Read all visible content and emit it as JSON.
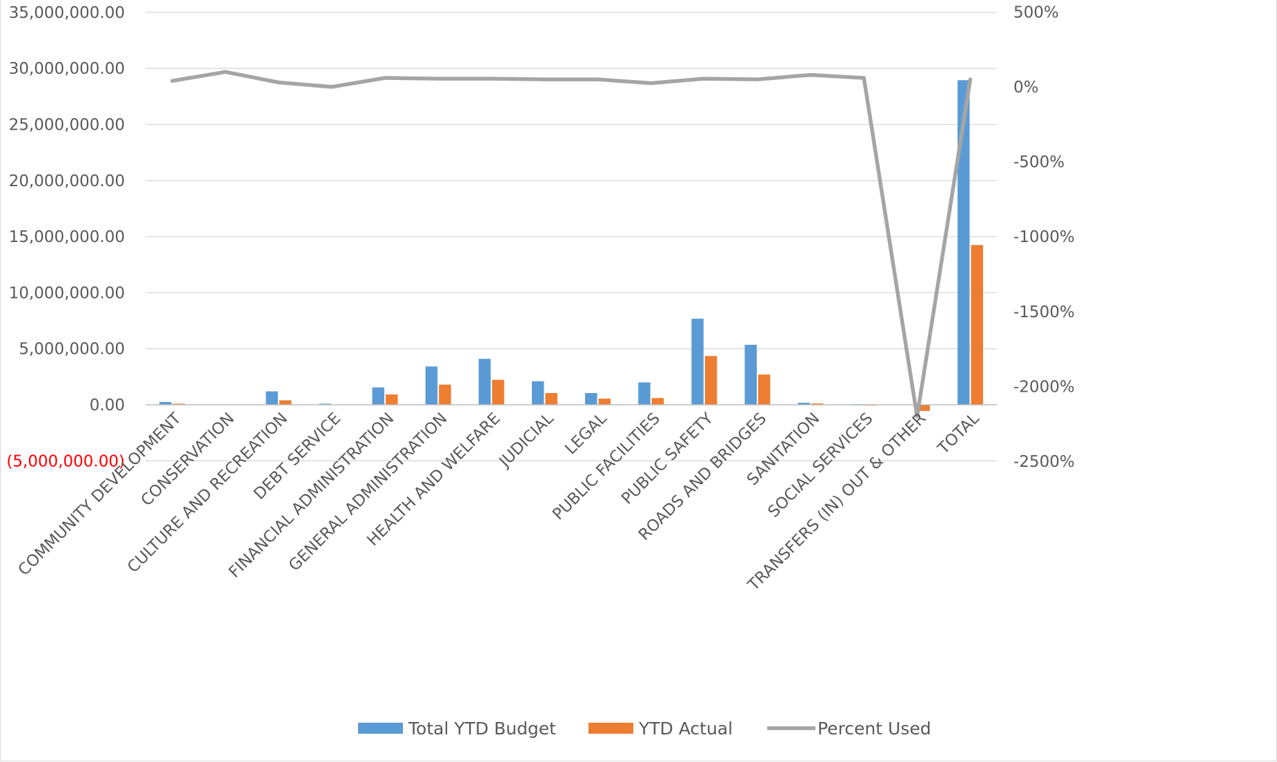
{
  "chart_data": {
    "type": "bar",
    "categories": [
      "COMMUNITY DEVELOPMENT",
      "CONSERVATION",
      "CULTURE AND RECREATION",
      "DEBT SERVICE",
      "FINANCIAL ADMINISTRATION",
      "GENERAL ADMINISTRATION",
      "HEALTH AND WELFARE",
      "JUDICIAL",
      "LEGAL",
      "PUBLIC FACILITIES",
      "PUBLIC SAFETY",
      "ROADS AND BRIDGES",
      "SANITATION",
      "SOCIAL SERVICES",
      "TRANSFERS (IN) OUT & OTHER",
      "TOTAL"
    ],
    "series": [
      {
        "name": "Total YTD Budget",
        "kind": "bar",
        "axis": "left",
        "color": "#5b9bd5",
        "values": [
          250000,
          0,
          1200000,
          100000,
          1550000,
          3420000,
          4100000,
          2100000,
          1050000,
          2000000,
          7680000,
          5350000,
          180000,
          50000,
          0,
          28950000
        ]
      },
      {
        "name": "YTD Actual",
        "kind": "bar",
        "axis": "left",
        "color": "#ed7d31",
        "values": [
          100000,
          0,
          400000,
          0,
          920000,
          1800000,
          2230000,
          1050000,
          550000,
          600000,
          4350000,
          2700000,
          120000,
          20000,
          -550000,
          14250000
        ]
      },
      {
        "name": "Percent Used",
        "kind": "line",
        "axis": "right",
        "color": "#a5a5a5",
        "values": [
          40,
          100,
          30,
          0,
          60,
          55,
          55,
          50,
          50,
          25,
          55,
          50,
          80,
          60,
          -2200,
          50
        ]
      }
    ],
    "y_left": {
      "range": [
        -5000000,
        35000000
      ],
      "ticks": [
        "35,000,000.00",
        "30,000,000.00",
        "25,000,000.00",
        "20,000,000.00",
        "15,000,000.00",
        "10,000,000.00",
        "5,000,000.00",
        "0.00",
        "(5,000,000.00)"
      ],
      "tick_values": [
        35000000,
        30000000,
        25000000,
        20000000,
        15000000,
        10000000,
        5000000,
        0,
        -5000000
      ],
      "negative_color": "#ff0000"
    },
    "y_right": {
      "range": [
        -2500,
        500
      ],
      "ticks": [
        "500%",
        "0%",
        "-500%",
        "-1000%",
        "-1500%",
        "-2000%",
        "-2500%"
      ],
      "tick_values": [
        500,
        0,
        -500,
        -1000,
        -1500,
        -2000,
        -2500
      ]
    },
    "grid": true,
    "legend_position": "bottom",
    "colors": {
      "tick_text": "#595959",
      "grid": "#d9d9d9",
      "axis": "#bfbfbf"
    }
  }
}
